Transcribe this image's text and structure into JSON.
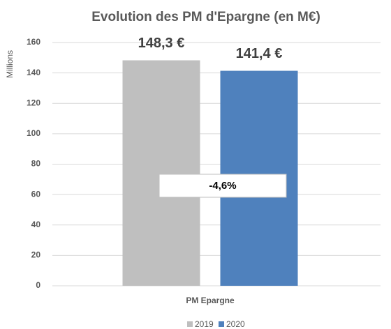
{
  "chart_data": {
    "type": "bar",
    "title": "Evolution des PM d'Epargne (en M€)",
    "y_label": "Millions",
    "categories": [
      "PM Epargne"
    ],
    "series": [
      {
        "name": "2019",
        "color": "#bfbfbf",
        "values": [
          148.3
        ],
        "value_labels": [
          "148,3 €"
        ]
      },
      {
        "name": "2020",
        "color": "#4f81bd",
        "values": [
          141.4
        ],
        "value_labels": [
          "141,4 €"
        ]
      }
    ],
    "annotation": "-4,6%",
    "ylim": [
      0,
      160
    ],
    "yticks": [
      0,
      20,
      40,
      60,
      80,
      100,
      120,
      140,
      160
    ],
    "grid": true,
    "legend": "bottom"
  }
}
